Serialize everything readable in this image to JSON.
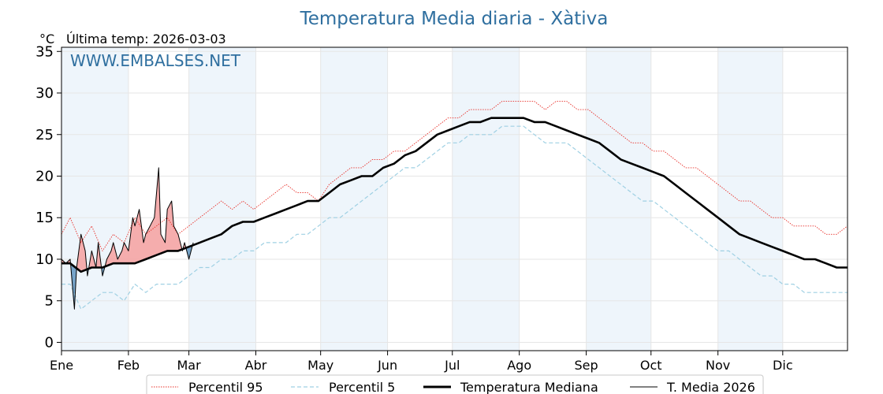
{
  "title": "Temperatura Media diaria - Xàtiva",
  "unit_label": "°C",
  "last_update": "Última temp: 2026-03-03",
  "watermark": "WWW.EMBALSES.NET",
  "colors": {
    "title": "#2f6f9f",
    "p95": "#e8302a",
    "p5": "#9fd0e3",
    "median": "#000000",
    "current": "#000000",
    "above_fill": "#f4a9a9",
    "below_fill": "#6f9fc6",
    "band": "#eef5fb"
  },
  "chart_data": {
    "type": "line",
    "title": "Temperatura Media diaria - Xàtiva",
    "ylabel": "°C",
    "ylim": [
      -1,
      35.5
    ],
    "yticks": [
      0,
      5,
      10,
      15,
      20,
      25,
      30,
      35
    ],
    "xlim": [
      1,
      365
    ],
    "grid": true,
    "legend_position": "bottom",
    "months": [
      {
        "label": "Ene",
        "day": 1
      },
      {
        "label": "Feb",
        "day": 32
      },
      {
        "label": "Mar",
        "day": 60
      },
      {
        "label": "Abr",
        "day": 91
      },
      {
        "label": "May",
        "day": 121
      },
      {
        "label": "Jun",
        "day": 152
      },
      {
        "label": "Jul",
        "day": 182
      },
      {
        "label": "Ago",
        "day": 213
      },
      {
        "label": "Sep",
        "day": 244
      },
      {
        "label": "Oct",
        "day": 274
      },
      {
        "label": "Nov",
        "day": 305
      },
      {
        "label": "Dic",
        "day": 335
      }
    ],
    "series": [
      {
        "name": "Percentil 95",
        "style": "dotted",
        "x": [
          1,
          5,
          10,
          15,
          20,
          25,
          30,
          35,
          40,
          45,
          50,
          55,
          60,
          65,
          70,
          75,
          80,
          85,
          90,
          95,
          100,
          105,
          110,
          115,
          120,
          125,
          130,
          135,
          140,
          145,
          150,
          155,
          160,
          165,
          170,
          175,
          180,
          185,
          190,
          195,
          200,
          205,
          210,
          215,
          220,
          225,
          230,
          235,
          240,
          245,
          250,
          255,
          260,
          265,
          270,
          275,
          280,
          285,
          290,
          295,
          300,
          305,
          310,
          315,
          320,
          325,
          330,
          335,
          340,
          345,
          350,
          355,
          360,
          365
        ],
        "values": [
          13,
          15,
          12,
          14,
          11,
          13,
          12,
          15,
          13,
          14,
          15,
          13,
          14,
          15,
          16,
          17,
          16,
          17,
          16,
          17,
          18,
          19,
          18,
          18,
          17,
          19,
          20,
          21,
          21,
          22,
          22,
          23,
          23,
          24,
          25,
          26,
          27,
          27,
          28,
          28,
          28,
          29,
          29,
          29,
          29,
          28,
          29,
          29,
          28,
          28,
          27,
          26,
          25,
          24,
          24,
          23,
          23,
          22,
          21,
          21,
          20,
          19,
          18,
          17,
          17,
          16,
          15,
          15,
          14,
          14,
          14,
          13,
          13,
          14
        ]
      },
      {
        "name": "Percentil 5",
        "style": "dashed",
        "x": [
          1,
          5,
          10,
          15,
          20,
          25,
          30,
          35,
          40,
          45,
          50,
          55,
          60,
          65,
          70,
          75,
          80,
          85,
          90,
          95,
          100,
          105,
          110,
          115,
          120,
          125,
          130,
          135,
          140,
          145,
          150,
          155,
          160,
          165,
          170,
          175,
          180,
          185,
          190,
          195,
          200,
          205,
          210,
          215,
          220,
          225,
          230,
          235,
          240,
          245,
          250,
          255,
          260,
          265,
          270,
          275,
          280,
          285,
          290,
          295,
          300,
          305,
          310,
          315,
          320,
          325,
          330,
          335,
          340,
          345,
          350,
          355,
          360,
          365
        ],
        "values": [
          7,
          7,
          4,
          5,
          6,
          6,
          5,
          7,
          6,
          7,
          7,
          7,
          8,
          9,
          9,
          10,
          10,
          11,
          11,
          12,
          12,
          12,
          13,
          13,
          14,
          15,
          15,
          16,
          17,
          18,
          19,
          20,
          21,
          21,
          22,
          23,
          24,
          24,
          25,
          25,
          25,
          26,
          26,
          26,
          25,
          24,
          24,
          24,
          23,
          22,
          21,
          20,
          19,
          18,
          17,
          17,
          16,
          15,
          14,
          13,
          12,
          11,
          11,
          10,
          9,
          8,
          8,
          7,
          7,
          6,
          6,
          6,
          6,
          6
        ]
      },
      {
        "name": "Temperatura Mediana",
        "style": "thick",
        "x": [
          1,
          5,
          10,
          15,
          20,
          25,
          30,
          35,
          40,
          45,
          50,
          55,
          60,
          65,
          70,
          75,
          80,
          85,
          90,
          95,
          100,
          105,
          110,
          115,
          120,
          125,
          130,
          135,
          140,
          145,
          150,
          155,
          160,
          165,
          170,
          175,
          180,
          185,
          190,
          195,
          200,
          205,
          210,
          215,
          220,
          225,
          230,
          235,
          240,
          245,
          250,
          255,
          260,
          265,
          270,
          275,
          280,
          285,
          290,
          295,
          300,
          305,
          310,
          315,
          320,
          325,
          330,
          335,
          340,
          345,
          350,
          355,
          360,
          365
        ],
        "values": [
          9.5,
          9.5,
          8.5,
          9,
          9,
          9.5,
          9.5,
          9.5,
          10,
          10.5,
          11,
          11,
          11.5,
          12,
          12.5,
          13,
          14,
          14.5,
          14.5,
          15,
          15.5,
          16,
          16.5,
          17,
          17,
          18,
          19,
          19.5,
          20,
          20,
          21,
          21.5,
          22.5,
          23,
          24,
          25,
          25.5,
          26,
          26.5,
          26.5,
          27,
          27,
          27,
          27,
          26.5,
          26.5,
          26,
          25.5,
          25,
          24.5,
          24,
          23,
          22,
          21.5,
          21,
          20.5,
          20,
          19,
          18,
          17,
          16,
          15,
          14,
          13,
          12.5,
          12,
          11.5,
          11,
          10.5,
          10,
          10,
          9.5,
          9,
          9
        ]
      },
      {
        "name": "T. Media 2026",
        "style": "thin",
        "x": [
          1,
          3,
          5,
          7,
          8,
          10,
          12,
          13,
          15,
          17,
          18,
          20,
          22,
          24,
          25,
          27,
          29,
          30,
          32,
          34,
          35,
          37,
          39,
          40,
          42,
          44,
          46,
          47,
          49,
          50,
          52,
          53,
          55,
          57,
          58,
          60,
          62
        ],
        "values": [
          10,
          9.5,
          10,
          4,
          9,
          13,
          11,
          8,
          11,
          9,
          12,
          8,
          10,
          11,
          12,
          10,
          11,
          12,
          11,
          15,
          14,
          16,
          12,
          13,
          14,
          15,
          21,
          13,
          12,
          16,
          17,
          14,
          13,
          11,
          12,
          10,
          12
        ]
      }
    ]
  },
  "legend": [
    {
      "key": "p95",
      "label": "Percentil 95"
    },
    {
      "key": "p5",
      "label": "Percentil 5"
    },
    {
      "key": "median",
      "label": "Temperatura Mediana"
    },
    {
      "key": "current",
      "label": "T. Media 2026"
    }
  ]
}
